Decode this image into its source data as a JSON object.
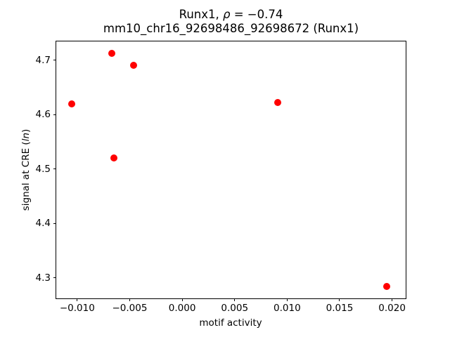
{
  "header": {
    "title_prefix": "Runx1, ",
    "title_rho": "ρ",
    "title_suffix": " = −0.74",
    "subtitle": "mm10_chr16_92698486_92698672 (Runx1)"
  },
  "axes": {
    "xlabel": "motif activity",
    "ylabel_prefix": "signal at CRE (",
    "ylabel_italic": "ln",
    "ylabel_suffix": ")"
  },
  "chart_data": {
    "type": "scatter",
    "title": "Runx1, ρ = −0.74",
    "subtitle": "mm10_chr16_92698486_92698672 (Runx1)",
    "xlabel": "motif activity",
    "ylabel": "signal at CRE (ln)",
    "marker_color": "#ff0000",
    "background_color": "#ffffff",
    "spine_color": "#000000",
    "grid": false,
    "legend": "none",
    "xlim": [
      -0.012,
      0.0213
    ],
    "ylim": [
      4.2625,
      4.7345
    ],
    "xticks": [
      -0.01,
      -0.005,
      0,
      0.005,
      0.01,
      0.015,
      0.02
    ],
    "xtick_labels": [
      "−0.010",
      "−0.005",
      "0.000",
      "0.005",
      "0.010",
      "0.015",
      "0.020"
    ],
    "yticks": [
      4.3,
      4.4,
      4.5,
      4.6,
      4.7
    ],
    "ytick_labels": [
      "4.3",
      "4.4",
      "4.5",
      "4.6",
      "4.7"
    ],
    "points": [
      {
        "x": -0.0105,
        "y": 4.62
      },
      {
        "x": -0.0067,
        "y": 4.713
      },
      {
        "x": -0.0065,
        "y": 4.52
      },
      {
        "x": -0.0046,
        "y": 4.691
      },
      {
        "x": 0.0091,
        "y": 4.622
      },
      {
        "x": 0.0195,
        "y": 4.284
      }
    ]
  }
}
